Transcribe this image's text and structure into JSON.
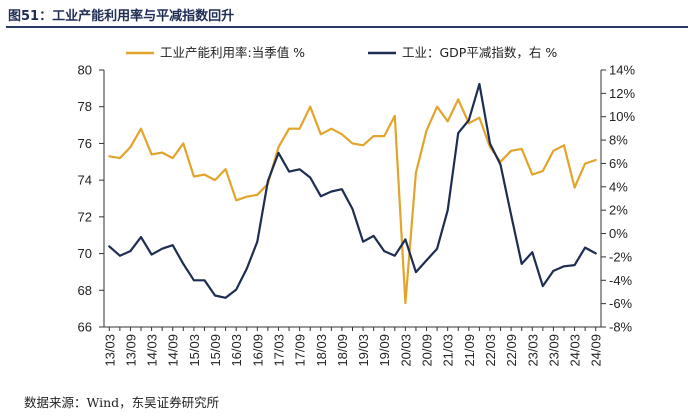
{
  "figure": {
    "title": "图51：工业产能利用率与平减指数回升",
    "source": "数据来源：Wind，东吴证券研究所"
  },
  "chart_data": {
    "type": "line",
    "title": "工业产能利用率与平减指数回升",
    "categories": [
      "13/03",
      "13/06",
      "13/09",
      "13/12",
      "14/03",
      "14/06",
      "14/09",
      "14/12",
      "15/03",
      "15/06",
      "15/09",
      "15/12",
      "16/03",
      "16/06",
      "16/09",
      "16/12",
      "17/03",
      "17/06",
      "17/09",
      "17/12",
      "18/03",
      "18/06",
      "18/09",
      "18/12",
      "19/03",
      "19/06",
      "19/09",
      "19/12",
      "20/03",
      "20/06",
      "20/09",
      "20/12",
      "21/03",
      "21/06",
      "21/09",
      "21/12",
      "22/03",
      "22/06",
      "22/09",
      "22/12",
      "23/03",
      "23/06",
      "23/09",
      "23/12",
      "24/03",
      "24/06",
      "24/09"
    ],
    "x_tick_labels": [
      "13/03",
      "13/09",
      "14/03",
      "14/09",
      "15/03",
      "15/09",
      "16/03",
      "16/09",
      "17/03",
      "17/09",
      "18/03",
      "18/09",
      "19/03",
      "19/09",
      "20/03",
      "20/09",
      "21/03",
      "21/09",
      "22/03",
      "22/09",
      "23/03",
      "23/09",
      "24/03",
      "24/09"
    ],
    "left_axis": {
      "ylim": [
        66,
        80
      ],
      "ticks": [
        "66",
        "68",
        "70",
        "72",
        "74",
        "76",
        "78",
        "80"
      ]
    },
    "right_axis": {
      "ylim": [
        -8,
        14
      ],
      "ticks": [
        "-8%",
        "-6%",
        "-4%",
        "-2%",
        "0%",
        "2%",
        "4%",
        "6%",
        "8%",
        "10%",
        "12%",
        "14%"
      ]
    },
    "series": [
      {
        "name": "工业产能利用率:当季值 %",
        "axis": "left",
        "color": "#E2A42B",
        "values": [
          75.3,
          75.2,
          75.8,
          76.8,
          75.4,
          75.5,
          75.2,
          76.0,
          74.2,
          74.3,
          74.0,
          74.6,
          72.9,
          73.1,
          73.2,
          73.8,
          75.8,
          76.8,
          76.8,
          78.0,
          76.5,
          76.8,
          76.5,
          76.0,
          75.9,
          76.4,
          76.4,
          77.5,
          67.3,
          74.4,
          76.7,
          78.0,
          77.2,
          78.4,
          77.1,
          77.4,
          75.8,
          75.0,
          75.6,
          75.7,
          74.3,
          74.5,
          75.6,
          75.9,
          73.6,
          74.9,
          75.1
        ]
      },
      {
        "name": "工业：GDP平减指数，右 %",
        "axis": "right",
        "color": "#1E2E52",
        "values": [
          -1.1,
          -1.9,
          -1.5,
          -0.3,
          -1.8,
          -1.3,
          -1.0,
          -2.6,
          -4.0,
          -4.0,
          -5.3,
          -5.5,
          -4.8,
          -3.0,
          -0.7,
          4.5,
          6.9,
          5.3,
          5.5,
          4.8,
          3.2,
          3.6,
          3.8,
          2.1,
          -0.7,
          -0.2,
          -1.5,
          -1.9,
          -0.5,
          -3.3,
          -2.3,
          -1.3,
          2.0,
          8.6,
          9.7,
          12.8,
          7.7,
          5.9,
          1.6,
          -2.6,
          -1.6,
          -4.5,
          -3.2,
          -2.8,
          -2.7,
          -1.2,
          -1.7
        ]
      }
    ],
    "legend": {
      "placement": "top",
      "items": [
        "工业产能利用率:当季值 %",
        "工业：GDP平减指数，右 %"
      ]
    }
  }
}
